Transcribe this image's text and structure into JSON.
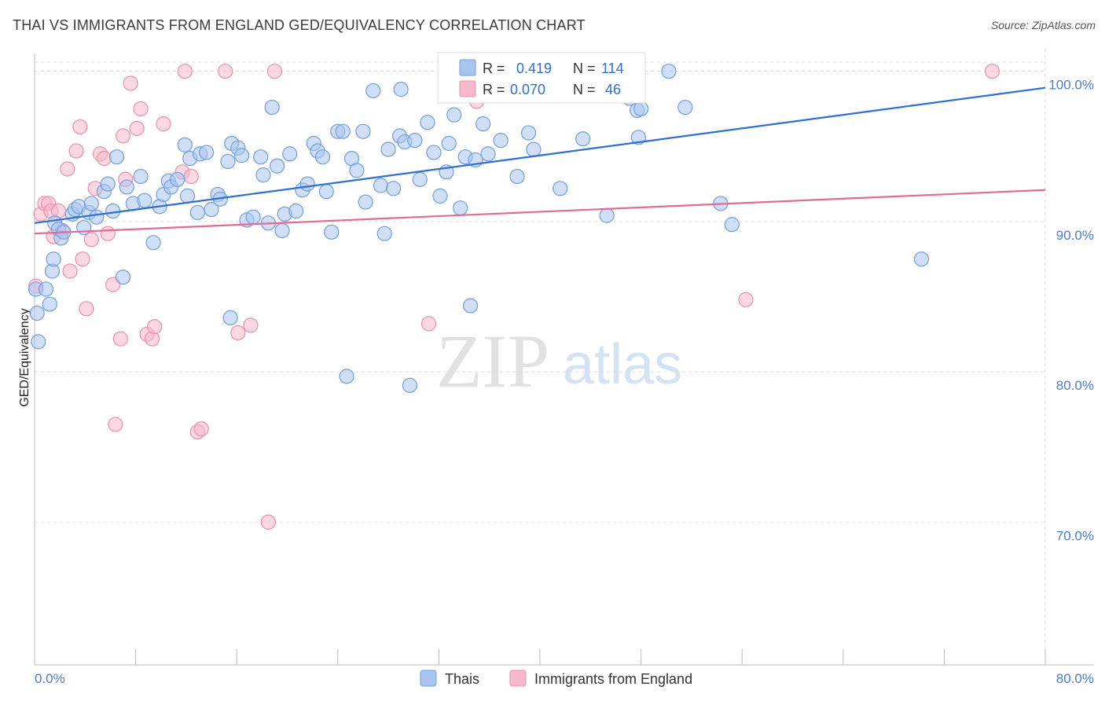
{
  "header": {
    "title": "THAI VS IMMIGRANTS FROM ENGLAND GED/EQUIVALENCY CORRELATION CHART",
    "source": "Source: ZipAtlas.com"
  },
  "watermark": {
    "zip": "ZIP",
    "atlas": "atlas"
  },
  "legend_top": {
    "rows": [
      {
        "r_label": "R =",
        "r_value": "0.419",
        "n_label": "N =",
        "n_value": "114",
        "color": "#a9c5ef"
      },
      {
        "r_label": "R =",
        "r_value": "0.070",
        "n_label": "N =",
        "n_value": "46",
        "color": "#f7b8cb"
      }
    ]
  },
  "legend_bottom": {
    "items": [
      {
        "label": "Thais",
        "color": "#a9c5ef"
      },
      {
        "label": "Immigrants from England",
        "color": "#f7b8cb"
      }
    ]
  },
  "colors": {
    "blue_fill": "#a9c5ef",
    "blue_stroke": "#6f9fe0",
    "blue_line": "#2f6fd1",
    "pink_fill": "#f7b8cb",
    "pink_stroke": "#ee8fab",
    "pink_line": "#e06b93",
    "tick_text": "#4a7cc9",
    "grid": "#dddddd"
  },
  "chart_data": {
    "type": "scatter",
    "title": "THAI VS IMMIGRANTS FROM ENGLAND GED/EQUIVALENCY CORRELATION CHART",
    "xlabel": "",
    "ylabel": "GED/Equivalency",
    "xlim": [
      0,
      80
    ],
    "ylim": [
      60.5,
      101.5
    ],
    "x_tick_labels": [
      "0.0%",
      "80.0%"
    ],
    "y_ticks": [
      70,
      80,
      90,
      100
    ],
    "y_tick_labels": [
      "70.0%",
      "80.0%",
      "90.0%",
      "100.0%"
    ],
    "grid": true,
    "legend_position": "top-center",
    "series": [
      {
        "name": "Thais",
        "r": 0.419,
        "n": 114,
        "trend": {
          "x": [
            0,
            80
          ],
          "y": [
            89.9,
            98.9
          ]
        },
        "points": [
          [
            0.1,
            85.5
          ],
          [
            0.2,
            83.9
          ],
          [
            0.3,
            82.0
          ],
          [
            0.9,
            85.5
          ],
          [
            1.2,
            84.5
          ],
          [
            1.4,
            86.7
          ],
          [
            1.5,
            87.5
          ],
          [
            1.6,
            89.9
          ],
          [
            1.9,
            89.5
          ],
          [
            2.1,
            88.9
          ],
          [
            2.3,
            89.3
          ],
          [
            3.0,
            90.5
          ],
          [
            3.2,
            90.8
          ],
          [
            3.5,
            91.0
          ],
          [
            3.9,
            89.6
          ],
          [
            4.3,
            90.6
          ],
          [
            4.5,
            91.2
          ],
          [
            4.9,
            90.3
          ],
          [
            5.5,
            92.0
          ],
          [
            5.8,
            92.5
          ],
          [
            6.2,
            90.7
          ],
          [
            6.5,
            94.3
          ],
          [
            7.0,
            86.3
          ],
          [
            7.3,
            92.3
          ],
          [
            7.8,
            91.2
          ],
          [
            8.4,
            93.0
          ],
          [
            8.7,
            91.4
          ],
          [
            9.4,
            88.6
          ],
          [
            9.9,
            91.0
          ],
          [
            10.2,
            91.8
          ],
          [
            10.6,
            92.7
          ],
          [
            10.8,
            92.3
          ],
          [
            11.3,
            92.8
          ],
          [
            11.9,
            95.1
          ],
          [
            12.1,
            91.7
          ],
          [
            12.3,
            94.2
          ],
          [
            12.9,
            90.6
          ],
          [
            13.1,
            94.5
          ],
          [
            13.6,
            94.6
          ],
          [
            14.0,
            90.8
          ],
          [
            14.5,
            91.8
          ],
          [
            14.7,
            91.5
          ],
          [
            15.3,
            94.0
          ],
          [
            15.5,
            83.6
          ],
          [
            15.6,
            95.2
          ],
          [
            16.1,
            94.9
          ],
          [
            16.4,
            94.4
          ],
          [
            16.8,
            90.1
          ],
          [
            17.3,
            90.3
          ],
          [
            17.9,
            94.3
          ],
          [
            18.1,
            93.1
          ],
          [
            18.5,
            89.9
          ],
          [
            18.8,
            97.6
          ],
          [
            19.2,
            93.7
          ],
          [
            19.6,
            89.4
          ],
          [
            19.8,
            90.5
          ],
          [
            20.2,
            94.5
          ],
          [
            20.7,
            90.7
          ],
          [
            21.2,
            92.1
          ],
          [
            21.6,
            92.5
          ],
          [
            22.1,
            95.2
          ],
          [
            22.4,
            94.7
          ],
          [
            22.8,
            94.3
          ],
          [
            23.1,
            92.0
          ],
          [
            23.5,
            89.3
          ],
          [
            24.0,
            96.0
          ],
          [
            24.4,
            96.0
          ],
          [
            24.7,
            79.7
          ],
          [
            25.1,
            94.2
          ],
          [
            25.5,
            93.4
          ],
          [
            26.0,
            96.0
          ],
          [
            26.2,
            91.3
          ],
          [
            26.8,
            98.7
          ],
          [
            27.4,
            92.4
          ],
          [
            27.7,
            89.2
          ],
          [
            28.0,
            94.8
          ],
          [
            28.4,
            92.2
          ],
          [
            28.9,
            95.7
          ],
          [
            29.3,
            95.3
          ],
          [
            29.7,
            79.1
          ],
          [
            30.1,
            95.4
          ],
          [
            30.5,
            92.8
          ],
          [
            31.1,
            96.6
          ],
          [
            31.6,
            94.6
          ],
          [
            32.1,
            91.7
          ],
          [
            32.6,
            93.3
          ],
          [
            32.8,
            95.2
          ],
          [
            33.2,
            97.1
          ],
          [
            33.7,
            90.9
          ],
          [
            34.1,
            94.3
          ],
          [
            34.5,
            84.4
          ],
          [
            34.9,
            94.1
          ],
          [
            35.5,
            96.5
          ],
          [
            35.9,
            94.5
          ],
          [
            36.5,
            98.4
          ],
          [
            36.9,
            95.4
          ],
          [
            37.4,
            98.7
          ],
          [
            38.2,
            93.0
          ],
          [
            39.1,
            95.9
          ],
          [
            39.5,
            94.8
          ],
          [
            41.6,
            92.2
          ],
          [
            43.4,
            95.5
          ],
          [
            45.3,
            90.4
          ],
          [
            47.1,
            98.2
          ],
          [
            47.7,
            97.4
          ],
          [
            47.8,
            95.6
          ],
          [
            50.2,
            100.0
          ],
          [
            51.5,
            97.6
          ],
          [
            54.3,
            91.2
          ],
          [
            55.2,
            89.8
          ],
          [
            70.2,
            87.5
          ],
          [
            48.0,
            97.5
          ],
          [
            29.0,
            98.8
          ],
          [
            36.0,
            98.5
          ]
        ]
      },
      {
        "name": "Immigrants from England",
        "r": 0.07,
        "n": 46,
        "trend": {
          "x": [
            0,
            80
          ],
          "y": [
            89.2,
            92.1
          ]
        },
        "points": [
          [
            0.1,
            85.7
          ],
          [
            0.5,
            90.5
          ],
          [
            0.8,
            91.2
          ],
          [
            1.1,
            91.2
          ],
          [
            1.3,
            90.7
          ],
          [
            1.9,
            90.7
          ],
          [
            2.2,
            89.4
          ],
          [
            2.6,
            93.5
          ],
          [
            2.8,
            86.7
          ],
          [
            3.3,
            94.7
          ],
          [
            3.6,
            96.3
          ],
          [
            3.8,
            87.5
          ],
          [
            4.1,
            84.2
          ],
          [
            4.5,
            88.8
          ],
          [
            4.8,
            92.2
          ],
          [
            5.2,
            94.5
          ],
          [
            5.5,
            94.2
          ],
          [
            5.8,
            89.2
          ],
          [
            6.2,
            85.8
          ],
          [
            6.4,
            76.5
          ],
          [
            6.8,
            82.2
          ],
          [
            7.0,
            95.7
          ],
          [
            7.2,
            92.8
          ],
          [
            7.6,
            99.2
          ],
          [
            8.1,
            96.2
          ],
          [
            8.4,
            97.5
          ],
          [
            8.9,
            82.5
          ],
          [
            9.3,
            82.2
          ],
          [
            9.5,
            83.0
          ],
          [
            10.2,
            96.5
          ],
          [
            11.7,
            93.3
          ],
          [
            11.9,
            100.0
          ],
          [
            12.4,
            93.0
          ],
          [
            12.9,
            76.0
          ],
          [
            13.2,
            76.2
          ],
          [
            15.1,
            100.0
          ],
          [
            16.1,
            82.6
          ],
          [
            17.1,
            83.1
          ],
          [
            18.5,
            70.0
          ],
          [
            19.0,
            100.0
          ],
          [
            31.2,
            83.2
          ],
          [
            32.8,
            100.0
          ],
          [
            35.0,
            98.0
          ],
          [
            56.3,
            84.8
          ],
          [
            75.8,
            100.0
          ],
          [
            1.5,
            89.0
          ]
        ]
      }
    ]
  }
}
